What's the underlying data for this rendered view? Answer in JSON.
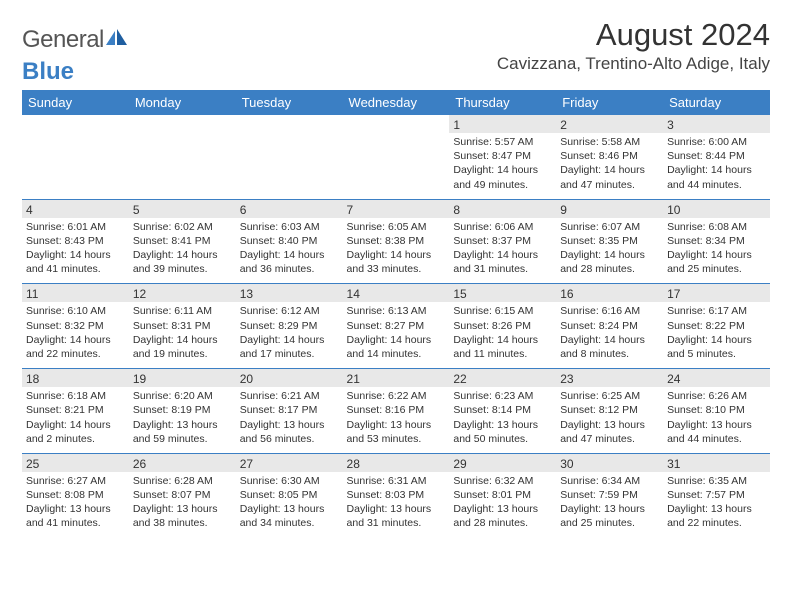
{
  "logo": {
    "word1": "General",
    "word2": "Blue"
  },
  "title": "August 2024",
  "location": "Cavizzana, Trentino-Alto Adige, Italy",
  "colors": {
    "header_bg": "#3b7fc4",
    "header_text": "#ffffff",
    "daynum_bg": "#e8e8e8",
    "border": "#3b7fc4",
    "logo_gray": "#555555",
    "logo_blue": "#3b7fc4"
  },
  "dayHeaders": [
    "Sunday",
    "Monday",
    "Tuesday",
    "Wednesday",
    "Thursday",
    "Friday",
    "Saturday"
  ],
  "weeks": [
    {
      "nums": [
        "",
        "",
        "",
        "",
        "1",
        "2",
        "3"
      ],
      "sunrise": [
        "",
        "",
        "",
        "",
        "Sunrise: 5:57 AM",
        "Sunrise: 5:58 AM",
        "Sunrise: 6:00 AM"
      ],
      "sunset": [
        "",
        "",
        "",
        "",
        "Sunset: 8:47 PM",
        "Sunset: 8:46 PM",
        "Sunset: 8:44 PM"
      ],
      "day1": [
        "",
        "",
        "",
        "",
        "Daylight: 14 hours",
        "Daylight: 14 hours",
        "Daylight: 14 hours"
      ],
      "day2": [
        "",
        "",
        "",
        "",
        "and 49 minutes.",
        "and 47 minutes.",
        "and 44 minutes."
      ]
    },
    {
      "nums": [
        "4",
        "5",
        "6",
        "7",
        "8",
        "9",
        "10"
      ],
      "sunrise": [
        "Sunrise: 6:01 AM",
        "Sunrise: 6:02 AM",
        "Sunrise: 6:03 AM",
        "Sunrise: 6:05 AM",
        "Sunrise: 6:06 AM",
        "Sunrise: 6:07 AM",
        "Sunrise: 6:08 AM"
      ],
      "sunset": [
        "Sunset: 8:43 PM",
        "Sunset: 8:41 PM",
        "Sunset: 8:40 PM",
        "Sunset: 8:38 PM",
        "Sunset: 8:37 PM",
        "Sunset: 8:35 PM",
        "Sunset: 8:34 PM"
      ],
      "day1": [
        "Daylight: 14 hours",
        "Daylight: 14 hours",
        "Daylight: 14 hours",
        "Daylight: 14 hours",
        "Daylight: 14 hours",
        "Daylight: 14 hours",
        "Daylight: 14 hours"
      ],
      "day2": [
        "and 41 minutes.",
        "and 39 minutes.",
        "and 36 minutes.",
        "and 33 minutes.",
        "and 31 minutes.",
        "and 28 minutes.",
        "and 25 minutes."
      ]
    },
    {
      "nums": [
        "11",
        "12",
        "13",
        "14",
        "15",
        "16",
        "17"
      ],
      "sunrise": [
        "Sunrise: 6:10 AM",
        "Sunrise: 6:11 AM",
        "Sunrise: 6:12 AM",
        "Sunrise: 6:13 AM",
        "Sunrise: 6:15 AM",
        "Sunrise: 6:16 AM",
        "Sunrise: 6:17 AM"
      ],
      "sunset": [
        "Sunset: 8:32 PM",
        "Sunset: 8:31 PM",
        "Sunset: 8:29 PM",
        "Sunset: 8:27 PM",
        "Sunset: 8:26 PM",
        "Sunset: 8:24 PM",
        "Sunset: 8:22 PM"
      ],
      "day1": [
        "Daylight: 14 hours",
        "Daylight: 14 hours",
        "Daylight: 14 hours",
        "Daylight: 14 hours",
        "Daylight: 14 hours",
        "Daylight: 14 hours",
        "Daylight: 14 hours"
      ],
      "day2": [
        "and 22 minutes.",
        "and 19 minutes.",
        "and 17 minutes.",
        "and 14 minutes.",
        "and 11 minutes.",
        "and 8 minutes.",
        "and 5 minutes."
      ]
    },
    {
      "nums": [
        "18",
        "19",
        "20",
        "21",
        "22",
        "23",
        "24"
      ],
      "sunrise": [
        "Sunrise: 6:18 AM",
        "Sunrise: 6:20 AM",
        "Sunrise: 6:21 AM",
        "Sunrise: 6:22 AM",
        "Sunrise: 6:23 AM",
        "Sunrise: 6:25 AM",
        "Sunrise: 6:26 AM"
      ],
      "sunset": [
        "Sunset: 8:21 PM",
        "Sunset: 8:19 PM",
        "Sunset: 8:17 PM",
        "Sunset: 8:16 PM",
        "Sunset: 8:14 PM",
        "Sunset: 8:12 PM",
        "Sunset: 8:10 PM"
      ],
      "day1": [
        "Daylight: 14 hours",
        "Daylight: 13 hours",
        "Daylight: 13 hours",
        "Daylight: 13 hours",
        "Daylight: 13 hours",
        "Daylight: 13 hours",
        "Daylight: 13 hours"
      ],
      "day2": [
        "and 2 minutes.",
        "and 59 minutes.",
        "and 56 minutes.",
        "and 53 minutes.",
        "and 50 minutes.",
        "and 47 minutes.",
        "and 44 minutes."
      ]
    },
    {
      "nums": [
        "25",
        "26",
        "27",
        "28",
        "29",
        "30",
        "31"
      ],
      "sunrise": [
        "Sunrise: 6:27 AM",
        "Sunrise: 6:28 AM",
        "Sunrise: 6:30 AM",
        "Sunrise: 6:31 AM",
        "Sunrise: 6:32 AM",
        "Sunrise: 6:34 AM",
        "Sunrise: 6:35 AM"
      ],
      "sunset": [
        "Sunset: 8:08 PM",
        "Sunset: 8:07 PM",
        "Sunset: 8:05 PM",
        "Sunset: 8:03 PM",
        "Sunset: 8:01 PM",
        "Sunset: 7:59 PM",
        "Sunset: 7:57 PM"
      ],
      "day1": [
        "Daylight: 13 hours",
        "Daylight: 13 hours",
        "Daylight: 13 hours",
        "Daylight: 13 hours",
        "Daylight: 13 hours",
        "Daylight: 13 hours",
        "Daylight: 13 hours"
      ],
      "day2": [
        "and 41 minutes.",
        "and 38 minutes.",
        "and 34 minutes.",
        "and 31 minutes.",
        "and 28 minutes.",
        "and 25 minutes.",
        "and 22 minutes."
      ]
    }
  ]
}
